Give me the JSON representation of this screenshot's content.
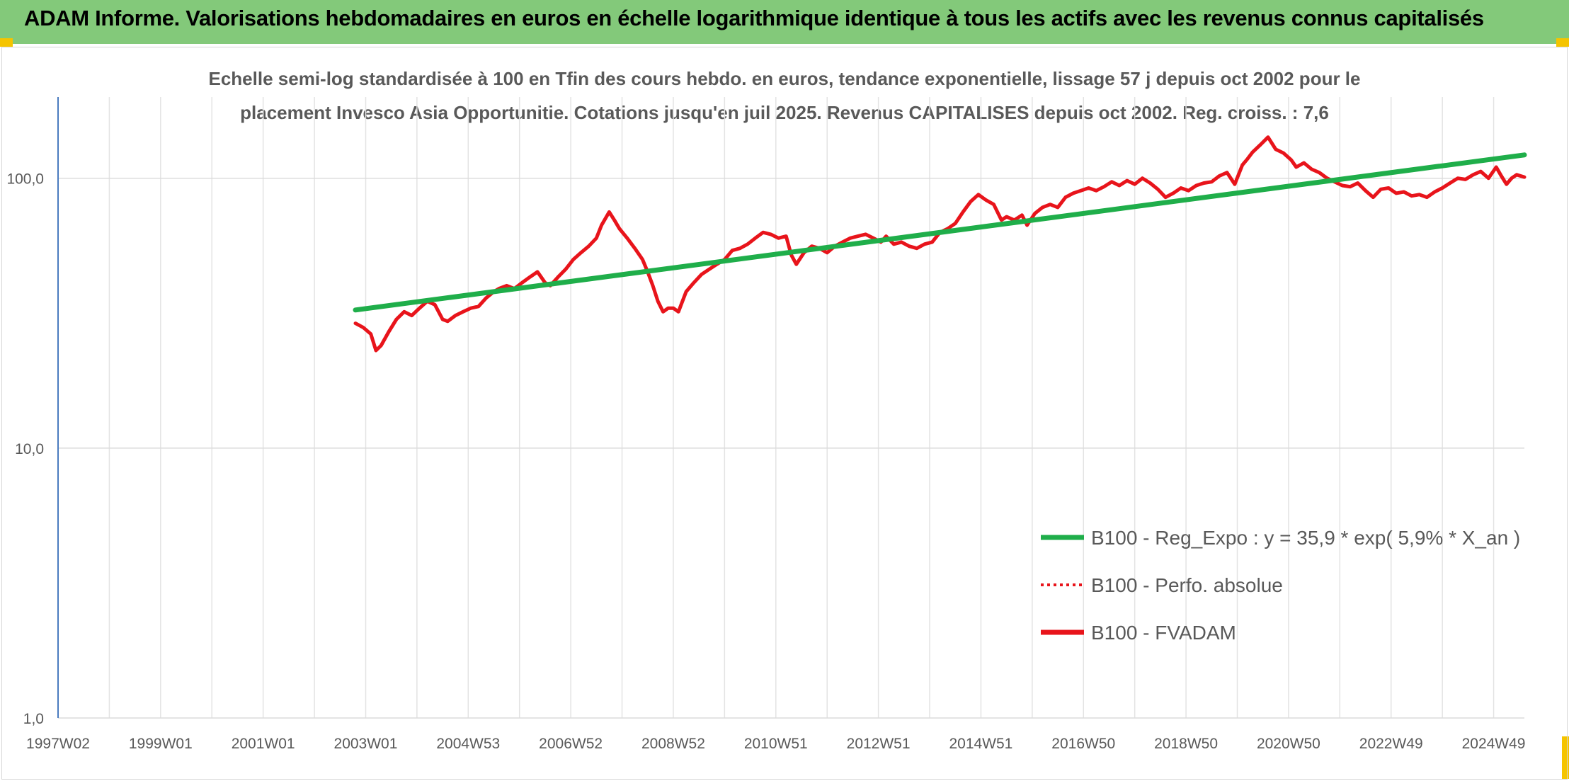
{
  "header": {
    "title": "ADAM Informe. Valorisations hebdomadaires en euros en échelle logarithmique identique à tous les actifs avec les revenus connus capitalisés"
  },
  "chart_data": {
    "type": "line",
    "title_line1": "Echelle semi-log standardisée à 100 en Tfin des cours hebdo. en euros, tendance exponentielle, lissage 57 j depuis oct 2002 pour le",
    "title_line2": "placement Invesco Asia Opportunitie. Cotations jusqu'en juil 2025. Revenus CAPITALISES depuis oct 2002. Reg. croiss. : 7,6",
    "y_scale": "log",
    "ylim": [
      1,
      200
    ],
    "xlim": [
      1997.0,
      2025.6
    ],
    "y_ticks": [
      {
        "value": 1,
        "label": "1,0"
      },
      {
        "value": 10,
        "label": "10,0"
      },
      {
        "value": 100,
        "label": "100,0"
      }
    ],
    "x_ticks": [
      {
        "value": 1997.0,
        "label": "1997W02"
      },
      {
        "value": 1999.0,
        "label": "1999W01"
      },
      {
        "value": 2001.0,
        "label": "2001W01"
      },
      {
        "value": 2003.0,
        "label": "2003W01"
      },
      {
        "value": 2005.0,
        "label": "2004W53"
      },
      {
        "value": 2007.0,
        "label": "2006W52"
      },
      {
        "value": 2009.0,
        "label": "2008W52"
      },
      {
        "value": 2011.0,
        "label": "2010W51"
      },
      {
        "value": 2013.0,
        "label": "2012W51"
      },
      {
        "value": 2015.0,
        "label": "2014W51"
      },
      {
        "value": 2017.0,
        "label": "2016W50"
      },
      {
        "value": 2019.0,
        "label": "2018W50"
      },
      {
        "value": 2021.0,
        "label": "2020W50"
      },
      {
        "value": 2023.0,
        "label": "2022W49"
      },
      {
        "value": 2025.0,
        "label": "2024W49"
      }
    ],
    "minor_gridlines_x": [
      1998.0,
      2000.0,
      2002.0,
      2004.0,
      2006.0,
      2008.0,
      2010.0,
      2012.0,
      2014.0,
      2016.0,
      2018.0,
      2020.0,
      2022.0,
      2024.0
    ],
    "grid": "on",
    "legend_position": "bottom-right",
    "series": [
      {
        "name": "B100 - Reg_Expo : y = 35,9 * exp( 5,9% *  X_an )",
        "color": "#1fae4a",
        "style": "solid",
        "x": [
          2002.8,
          2025.6
        ],
        "y": [
          32.5,
          122
        ]
      },
      {
        "name": "B100 - Perfo. absolue",
        "color": "#e8141b",
        "style": "dotted",
        "x": [],
        "y": []
      },
      {
        "name": "B100 - FVADAM",
        "color": "#e8141b",
        "style": "solid",
        "x": [
          2002.8,
          2002.95,
          2003.1,
          2003.2,
          2003.3,
          2003.45,
          2003.6,
          2003.75,
          2003.9,
          2004.05,
          2004.2,
          2004.35,
          2004.5,
          2004.6,
          2004.75,
          2004.9,
          2005.05,
          2005.2,
          2005.35,
          2005.5,
          2005.6,
          2005.75,
          2005.9,
          2006.05,
          2006.2,
          2006.35,
          2006.5,
          2006.6,
          2006.75,
          2006.9,
          2007.05,
          2007.2,
          2007.35,
          2007.5,
          2007.6,
          2007.75,
          2007.85,
          2007.95,
          2008.1,
          2008.25,
          2008.4,
          2008.5,
          2008.6,
          2008.7,
          2008.8,
          2008.9,
          2009.0,
          2009.1,
          2009.25,
          2009.4,
          2009.55,
          2009.7,
          2009.85,
          2010.0,
          2010.15,
          2010.3,
          2010.45,
          2010.6,
          2010.75,
          2010.9,
          2011.05,
          2011.2,
          2011.3,
          2011.4,
          2011.55,
          2011.7,
          2011.85,
          2012.0,
          2012.15,
          2012.3,
          2012.45,
          2012.6,
          2012.75,
          2012.9,
          2013.05,
          2013.15,
          2013.3,
          2013.45,
          2013.6,
          2013.75,
          2013.9,
          2014.05,
          2014.2,
          2014.35,
          2014.5,
          2014.65,
          2014.8,
          2014.95,
          2015.1,
          2015.25,
          2015.4,
          2015.5,
          2015.65,
          2015.8,
          2015.9,
          2016.05,
          2016.2,
          2016.35,
          2016.5,
          2016.65,
          2016.8,
          2016.95,
          2017.1,
          2017.25,
          2017.4,
          2017.55,
          2017.7,
          2017.85,
          2018.0,
          2018.15,
          2018.3,
          2018.45,
          2018.6,
          2018.75,
          2018.9,
          2019.05,
          2019.2,
          2019.35,
          2019.5,
          2019.65,
          2019.8,
          2019.95,
          2020.1,
          2020.2,
          2020.3,
          2020.45,
          2020.6,
          2020.75,
          2020.9,
          2021.05,
          2021.15,
          2021.3,
          2021.45,
          2021.6,
          2021.75,
          2021.9,
          2022.05,
          2022.2,
          2022.35,
          2022.5,
          2022.65,
          2022.8,
          2022.95,
          2023.1,
          2023.25,
          2023.4,
          2023.55,
          2023.7,
          2023.85,
          2024.0,
          2024.15,
          2024.3,
          2024.45,
          2024.6,
          2024.75,
          2024.9,
          2025.05,
          2025.15,
          2025.25,
          2025.35,
          2025.45,
          2025.6
        ],
        "y": [
          29,
          28,
          26.5,
          23,
          24,
          27,
          30,
          32,
          31,
          33,
          35,
          34,
          30,
          29.5,
          31,
          32,
          33,
          33.5,
          36,
          38,
          39,
          40,
          39,
          41,
          43,
          45,
          41,
          40,
          43,
          46,
          50,
          53,
          56,
          60,
          67,
          75,
          70,
          65,
          60,
          55,
          50,
          45,
          40,
          35,
          32,
          33,
          33,
          32,
          38,
          41,
          44,
          46,
          48,
          50,
          54,
          55,
          57,
          60,
          63,
          62,
          60,
          61,
          52,
          48,
          53,
          56,
          55,
          53,
          56,
          58,
          60,
          61,
          62,
          60,
          58,
          61,
          57,
          58,
          56,
          55,
          57,
          58,
          63,
          65,
          68,
          75,
          82,
          87,
          83,
          80,
          70,
          72,
          70,
          73,
          67,
          74,
          78,
          80,
          78,
          85,
          88,
          90,
          92,
          90,
          93,
          97,
          94,
          98,
          95,
          100,
          96,
          91,
          85,
          88,
          92,
          90,
          94,
          96,
          97,
          102,
          105,
          95,
          112,
          118,
          125,
          133,
          142,
          128,
          124,
          117,
          110,
          114,
          108,
          105,
          100,
          97,
          94,
          93,
          96,
          90,
          85,
          91,
          92,
          88,
          89,
          86,
          87,
          85,
          89,
          92,
          96,
          100,
          99,
          103,
          106,
          100,
          110,
          102,
          95,
          100,
          103,
          101
        ]
      }
    ]
  }
}
